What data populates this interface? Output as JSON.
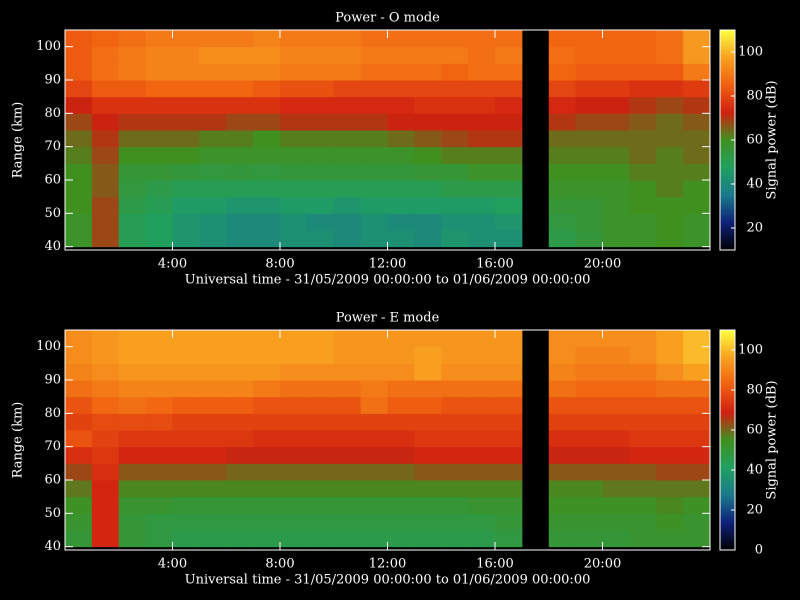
{
  "chart_data": [
    {
      "type": "heatmap",
      "title": "Power - O mode",
      "xlabel": "Universal time - 31/05/2009 00:00:00 to 01/06/2009 00:00:00",
      "ylabel": "Range (km)",
      "colorbar_label": "Signal power (dB)",
      "xlim": [
        0,
        24
      ],
      "xticks": [
        {
          "value": 4,
          "label": "4:00"
        },
        {
          "value": 8,
          "label": "8:00"
        },
        {
          "value": 12,
          "label": "12:00"
        },
        {
          "value": 16,
          "label": "16:00"
        },
        {
          "value": 20,
          "label": "20:00"
        }
      ],
      "ylim": [
        39,
        105
      ],
      "yticks": [
        40,
        50,
        60,
        70,
        80,
        90,
        100
      ],
      "zlim": [
        10,
        110
      ],
      "zticks": [
        20,
        40,
        60,
        80,
        100
      ],
      "colors": [
        "#000000",
        "#10207a",
        "#1a7a8a",
        "#20a060",
        "#409020",
        "#d02010",
        "#f06010",
        "#f8a020",
        "#ffff40"
      ],
      "x": [
        0.5,
        1.5,
        2.5,
        3.5,
        4.5,
        5.5,
        6.5,
        7.5,
        8.5,
        9.5,
        10.5,
        11.5,
        12.5,
        13.5,
        14.5,
        15.5,
        16.5,
        17.5,
        18.5,
        19.5,
        20.5,
        21.5,
        22.5,
        23.5
      ],
      "y": [
        42.5,
        47.5,
        52.5,
        57.5,
        62.5,
        67.5,
        72.5,
        77.5,
        82.5,
        87.5,
        92.5,
        97.5,
        102.5
      ],
      "z": [
        [
          58,
          68,
          50,
          48,
          44,
          42,
          40,
          40,
          42,
          42,
          40,
          42,
          42,
          40,
          44,
          42,
          42,
          null,
          52,
          55,
          58,
          58,
          60,
          58
        ],
        [
          58,
          68,
          50,
          48,
          44,
          42,
          40,
          40,
          42,
          40,
          40,
          42,
          40,
          40,
          42,
          42,
          44,
          null,
          54,
          56,
          58,
          58,
          60,
          58
        ],
        [
          60,
          68,
          52,
          50,
          46,
          46,
          44,
          44,
          46,
          46,
          44,
          46,
          46,
          46,
          46,
          46,
          48,
          null,
          56,
          56,
          58,
          60,
          60,
          60
        ],
        [
          60,
          66,
          54,
          52,
          50,
          50,
          50,
          50,
          50,
          50,
          50,
          50,
          50,
          50,
          52,
          52,
          52,
          null,
          58,
          58,
          58,
          60,
          62,
          60
        ],
        [
          60,
          66,
          56,
          56,
          55,
          54,
          55,
          54,
          55,
          55,
          55,
          55,
          55,
          56,
          56,
          58,
          58,
          null,
          60,
          60,
          60,
          62,
          62,
          62
        ],
        [
          62,
          68,
          60,
          60,
          60,
          58,
          58,
          58,
          58,
          58,
          58,
          58,
          58,
          60,
          62,
          62,
          62,
          null,
          62,
          62,
          62,
          64,
          62,
          64
        ],
        [
          64,
          70,
          64,
          64,
          64,
          62,
          62,
          60,
          62,
          62,
          62,
          62,
          64,
          66,
          68,
          70,
          70,
          null,
          64,
          64,
          64,
          64,
          64,
          64
        ],
        [
          68,
          72,
          70,
          70,
          70,
          70,
          68,
          68,
          70,
          70,
          70,
          70,
          72,
          72,
          72,
          72,
          72,
          null,
          70,
          68,
          68,
          66,
          64,
          66
        ],
        [
          72,
          76,
          76,
          76,
          76,
          76,
          76,
          76,
          74,
          74,
          74,
          74,
          74,
          76,
          76,
          76,
          74,
          null,
          74,
          72,
          72,
          70,
          68,
          70
        ],
        [
          80,
          84,
          84,
          86,
          86,
          86,
          86,
          84,
          82,
          82,
          80,
          80,
          80,
          80,
          80,
          80,
          80,
          null,
          80,
          78,
          78,
          76,
          76,
          78
        ],
        [
          84,
          88,
          90,
          92,
          92,
          92,
          92,
          92,
          90,
          90,
          90,
          88,
          88,
          88,
          86,
          88,
          88,
          null,
          86,
          84,
          84,
          84,
          84,
          90
        ],
        [
          84,
          88,
          90,
          92,
          92,
          94,
          94,
          94,
          92,
          92,
          92,
          90,
          90,
          90,
          90,
          88,
          90,
          null,
          88,
          86,
          86,
          86,
          88,
          96
        ],
        [
          84,
          86,
          88,
          90,
          90,
          90,
          90,
          92,
          90,
          90,
          90,
          88,
          88,
          88,
          88,
          88,
          88,
          null,
          86,
          86,
          86,
          86,
          88,
          96
        ]
      ]
    },
    {
      "type": "heatmap",
      "title": "Power - E mode",
      "xlabel": "Universal time - 31/05/2009 00:00:00 to 01/06/2009 00:00:00",
      "ylabel": "Range (km)",
      "colorbar_label": "Signal power (dB)",
      "xlim": [
        0,
        24
      ],
      "xticks": [
        {
          "value": 4,
          "label": "4:00"
        },
        {
          "value": 8,
          "label": "8:00"
        },
        {
          "value": 12,
          "label": "12:00"
        },
        {
          "value": 16,
          "label": "16:00"
        },
        {
          "value": 20,
          "label": "20:00"
        }
      ],
      "ylim": [
        39,
        105
      ],
      "yticks": [
        40,
        50,
        60,
        70,
        80,
        90,
        100
      ],
      "zlim": [
        0,
        110
      ],
      "zticks": [
        0,
        20,
        40,
        60,
        80,
        100
      ],
      "colors": [
        "#000000",
        "#10207a",
        "#1a7a8a",
        "#20a060",
        "#409020",
        "#d02010",
        "#f06010",
        "#f8a020",
        "#ffff40"
      ],
      "x": [
        0.5,
        1.5,
        2.5,
        3.5,
        4.5,
        5.5,
        6.5,
        7.5,
        8.5,
        9.5,
        10.5,
        11.5,
        12.5,
        13.5,
        14.5,
        15.5,
        16.5,
        17.5,
        18.5,
        19.5,
        20.5,
        21.5,
        22.5,
        23.5
      ],
      "y": [
        42.5,
        47.5,
        52.5,
        57.5,
        62.5,
        67.5,
        72.5,
        77.5,
        82.5,
        87.5,
        92.5,
        97.5,
        102.5
      ],
      "z": [
        [
          50,
          70,
          50,
          48,
          46,
          46,
          46,
          46,
          46,
          46,
          46,
          46,
          46,
          46,
          46,
          46,
          48,
          null,
          50,
          50,
          50,
          52,
          52,
          52
        ],
        [
          52,
          70,
          50,
          48,
          48,
          48,
          48,
          48,
          48,
          48,
          48,
          48,
          48,
          48,
          48,
          48,
          50,
          null,
          52,
          52,
          52,
          52,
          54,
          52
        ],
        [
          54,
          70,
          52,
          52,
          50,
          50,
          50,
          50,
          50,
          50,
          50,
          50,
          50,
          50,
          50,
          52,
          52,
          null,
          54,
          54,
          54,
          54,
          56,
          54
        ],
        [
          58,
          70,
          56,
          56,
          56,
          56,
          56,
          56,
          56,
          56,
          56,
          56,
          56,
          56,
          56,
          56,
          56,
          null,
          56,
          56,
          58,
          58,
          58,
          58
        ],
        [
          64,
          72,
          62,
          62,
          62,
          62,
          60,
          60,
          60,
          60,
          60,
          60,
          60,
          62,
          62,
          62,
          62,
          null,
          62,
          62,
          62,
          62,
          64,
          64
        ],
        [
          72,
          74,
          70,
          70,
          70,
          70,
          68,
          68,
          68,
          68,
          68,
          68,
          68,
          70,
          70,
          70,
          70,
          null,
          68,
          68,
          68,
          70,
          70,
          70
        ],
        [
          80,
          76,
          74,
          74,
          74,
          74,
          74,
          72,
          72,
          72,
          72,
          72,
          72,
          74,
          74,
          74,
          74,
          null,
          72,
          72,
          72,
          74,
          74,
          74
        ],
        [
          76,
          78,
          78,
          78,
          76,
          76,
          76,
          76,
          76,
          76,
          76,
          76,
          76,
          76,
          76,
          76,
          76,
          null,
          76,
          76,
          76,
          76,
          76,
          76
        ],
        [
          80,
          84,
          86,
          84,
          82,
          82,
          82,
          80,
          80,
          80,
          80,
          86,
          82,
          82,
          80,
          80,
          80,
          null,
          80,
          80,
          80,
          80,
          80,
          80
        ],
        [
          86,
          88,
          90,
          90,
          90,
          90,
          90,
          88,
          86,
          86,
          86,
          88,
          86,
          86,
          86,
          86,
          86,
          null,
          86,
          84,
          84,
          84,
          86,
          86
        ],
        [
          90,
          92,
          94,
          94,
          94,
          94,
          94,
          94,
          92,
          92,
          92,
          92,
          92,
          96,
          92,
          92,
          92,
          null,
          90,
          88,
          88,
          88,
          92,
          96
        ],
        [
          92,
          94,
          96,
          96,
          96,
          96,
          96,
          96,
          96,
          96,
          94,
          94,
          94,
          96,
          94,
          94,
          94,
          null,
          92,
          90,
          90,
          92,
          96,
          100
        ],
        [
          92,
          94,
          96,
          96,
          96,
          96,
          96,
          96,
          96,
          96,
          94,
          94,
          94,
          94,
          94,
          94,
          94,
          null,
          92,
          92,
          92,
          92,
          96,
          100
        ]
      ]
    }
  ]
}
